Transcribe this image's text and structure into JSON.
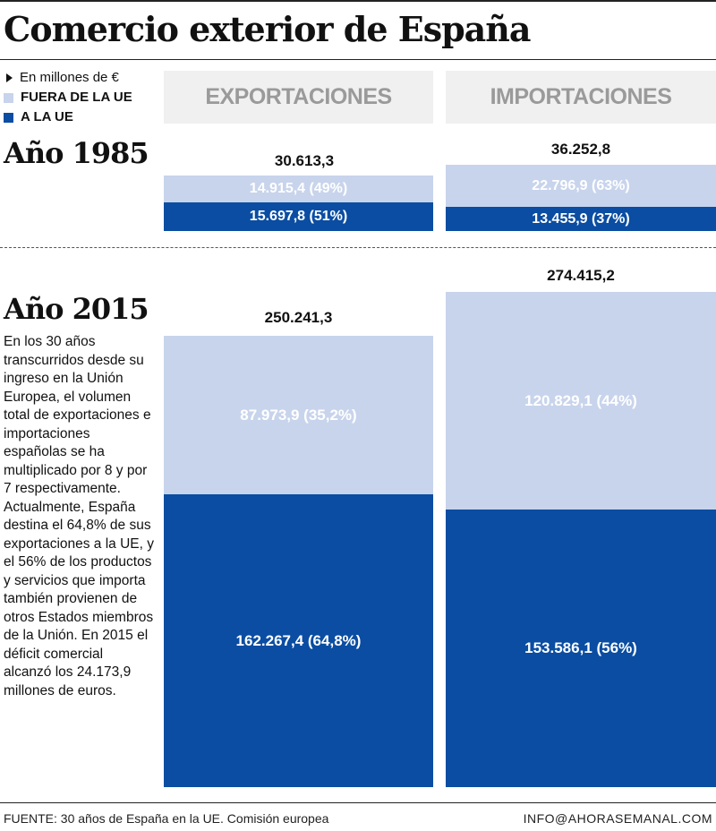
{
  "title": "Comercio exterior de España",
  "legend": {
    "unit": "En millones de €",
    "fuera": "FUERA DE LA UE",
    "ue": "A LA UE"
  },
  "columns": {
    "exportaciones": "EXPORTACIONES",
    "importaciones": "IMPORTACIONES"
  },
  "years": {
    "y1985": "Año 1985",
    "y2015": "Año 2015"
  },
  "description": "En los 30 años transcurridos desde su ingreso en la Unión Europea, el volumen total de exportaciones e importaciones españolas se ha multiplicado por 8 y por 7 respectivamente. Actualmente, España destina el 64,8% de sus exportaciones a la UE, y el 56% de los productos y servicios que importa también provienen de otros Estados miembros de la Unión. En 2015 el déficit comercial alcanzó los 24.173,9 millones de euros.",
  "footer": {
    "source": "FUENTE: 30 años de España en la UE. Comisión europea",
    "credit": "INFO@AHORASEMANAL.COM"
  },
  "colors": {
    "fuera_ue": "#c8d4ec",
    "a_la_ue": "#0a4da2",
    "header_bg": "#f0f0f0",
    "header_text": "#9a9a9a"
  },
  "chart_data": {
    "type": "bar",
    "title": "Comercio exterior de España",
    "unit": "En millones de €",
    "stacked": true,
    "categories": [
      "EXPORTACIONES",
      "IMPORTACIONES"
    ],
    "series": [
      {
        "name": "FUERA DE LA UE",
        "color": "#c8d4ec"
      },
      {
        "name": "A LA UE",
        "color": "#0a4da2"
      }
    ],
    "panels": [
      {
        "year": "Año 1985",
        "export": {
          "total": 30613.3,
          "total_label": "30.613,3",
          "fuera": 14915.4,
          "fuera_label": "14.915,4 (49%)",
          "ue": 15697.8,
          "ue_label": "15.697,8 (51%)"
        },
        "import": {
          "total": 36252.8,
          "total_label": "36.252,8",
          "fuera": 22796.9,
          "fuera_label": "22.796,9 (63%)",
          "ue": 13455.9,
          "ue_label": "13.455,9 (37%)"
        }
      },
      {
        "year": "Año 2015",
        "export": {
          "total": 250241.3,
          "total_label": "250.241,3",
          "fuera": 87973.9,
          "fuera_label": "87.973,9 (35,2%)",
          "ue": 162267.4,
          "ue_label": "162.267,4 (64,8%)"
        },
        "import": {
          "total": 274415.2,
          "total_label": "274.415,2",
          "fuera": 120829.1,
          "fuera_label": "120.829,1 (44%)",
          "ue": 153586.1,
          "ue_label": "153.586,1 (56%)"
        }
      }
    ]
  }
}
